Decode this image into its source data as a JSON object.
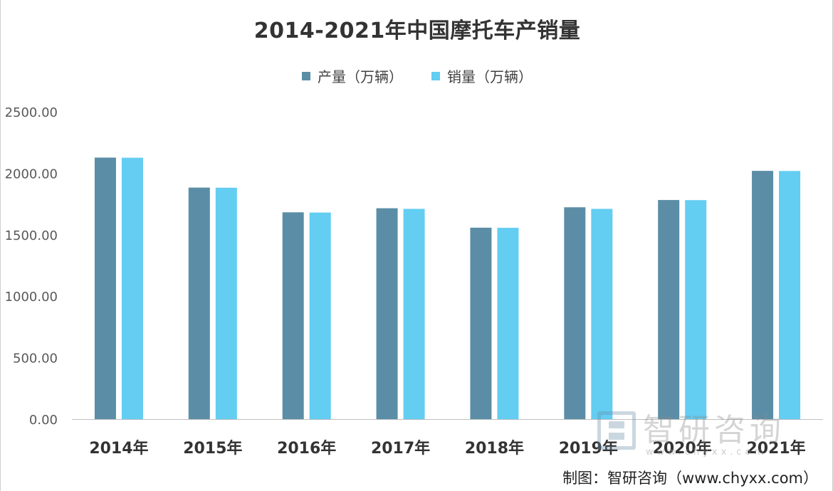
{
  "chart_data": {
    "type": "bar",
    "title": "2014-2021年中国摩托车产销量",
    "categories": [
      "2014年",
      "2015年",
      "2016年",
      "2017年",
      "2018年",
      "2019年",
      "2020年",
      "2021年"
    ],
    "series": [
      {
        "name": "产量（万辆）",
        "color": "#5b8ea6",
        "values": [
          2127,
          1883,
          1682,
          1715,
          1557,
          1723,
          1782,
          2019
        ]
      },
      {
        "name": "销量（万辆）",
        "color": "#63cdf2",
        "values": [
          2126,
          1882,
          1680,
          1710,
          1556,
          1710,
          1781,
          2018
        ]
      }
    ],
    "yticks": [
      "0.00",
      "500.00",
      "1000.00",
      "1500.00",
      "2000.00",
      "2500.00"
    ],
    "ylim": [
      0,
      2500
    ],
    "grid": false,
    "legend_position": "top"
  },
  "watermark": {
    "text": "智研咨询",
    "sub": "www.chyxx.com"
  },
  "source_note": "制图：智研咨询（www.chyxx.com）"
}
